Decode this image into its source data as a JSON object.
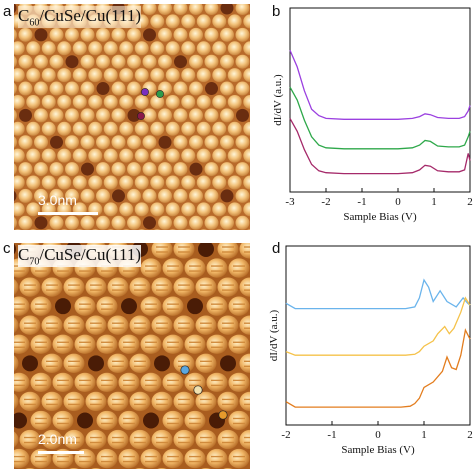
{
  "panels": [
    {
      "letter": "a"
    },
    {
      "letter": "b"
    },
    {
      "letter": "c"
    },
    {
      "letter": "d"
    }
  ],
  "stm_a": {
    "title_prefix": "C",
    "title_sub": "60",
    "title_suffix": "/CuSe/Cu(111)",
    "scale_label": "3.0nm",
    "markers": [
      {
        "color": "#7a2fbf"
      },
      {
        "color": "#2e9b4a"
      },
      {
        "color": "#8a1a4a"
      }
    ]
  },
  "stm_c": {
    "title_prefix": "C",
    "title_sub": "70",
    "title_suffix": "/CuSe/Cu(111)",
    "scale_label": "2.0nm",
    "markers": [
      {
        "color": "#5aa7e0"
      },
      {
        "color": "#f2e2b0"
      },
      {
        "color": "#e69a2c"
      }
    ]
  },
  "chart_data": [
    {
      "type": "line",
      "panel": "b",
      "xlabel": "Sample Bias (V)",
      "ylabel": "dI/dV (a.u.)",
      "xlim": [
        -3,
        2
      ],
      "xticks": [
        -3,
        -2,
        -1,
        0,
        1,
        2
      ],
      "yticks": [],
      "series": [
        {
          "color": "#9b40e0",
          "x": [
            -3.0,
            -2.8,
            -2.6,
            -2.4,
            -2.2,
            -2.0,
            -1.5,
            -1.0,
            -0.5,
            0.0,
            0.4,
            0.6,
            0.75,
            0.9,
            1.1,
            1.4,
            1.7,
            1.85,
            1.95,
            2.0
          ],
          "y": [
            8.2,
            7.3,
            6.0,
            5.0,
            4.65,
            4.5,
            4.45,
            4.45,
            4.45,
            4.45,
            4.5,
            4.6,
            4.75,
            4.7,
            4.55,
            4.5,
            4.5,
            4.6,
            4.9,
            5.2
          ]
        },
        {
          "color": "#2ea84a",
          "x": [
            -3.0,
            -2.8,
            -2.6,
            -2.4,
            -2.2,
            -2.0,
            -1.5,
            -1.0,
            -0.5,
            0.0,
            0.4,
            0.6,
            0.75,
            0.9,
            1.1,
            1.4,
            1.7,
            1.85,
            1.95,
            2.0
          ],
          "y": [
            6.2,
            5.5,
            4.4,
            3.5,
            3.05,
            2.9,
            2.85,
            2.85,
            2.85,
            2.85,
            2.9,
            3.05,
            3.3,
            3.25,
            3.0,
            2.95,
            2.95,
            3.05,
            3.5,
            3.8
          ]
        },
        {
          "color": "#a52a6a",
          "x": [
            -3.0,
            -2.8,
            -2.6,
            -2.4,
            -2.2,
            -2.0,
            -1.5,
            -1.0,
            -0.5,
            0.0,
            0.4,
            0.6,
            0.75,
            0.9,
            1.1,
            1.4,
            1.7,
            1.85,
            1.95,
            2.0
          ],
          "y": [
            4.5,
            3.8,
            2.8,
            2.0,
            1.65,
            1.55,
            1.5,
            1.5,
            1.5,
            1.5,
            1.55,
            1.7,
            1.95,
            1.9,
            1.65,
            1.6,
            1.6,
            1.7,
            2.6,
            2.2
          ]
        }
      ]
    },
    {
      "type": "line",
      "panel": "d",
      "xlabel": "Sample Bias (V)",
      "ylabel": "dI/dV (a.u.)",
      "xlim": [
        -2,
        2
      ],
      "xticks": [
        -2,
        -1,
        0,
        1,
        2
      ],
      "yticks": [],
      "series": [
        {
          "color": "#6ab4ec",
          "x": [
            -2.0,
            -1.8,
            -1.0,
            0.0,
            0.6,
            0.8,
            0.9,
            1.0,
            1.1,
            1.2,
            1.35,
            1.5,
            1.7,
            1.85,
            1.95,
            2.0
          ],
          "y": [
            7.3,
            7.0,
            7.0,
            7.0,
            7.0,
            7.1,
            7.6,
            8.6,
            8.2,
            7.4,
            8.0,
            7.4,
            7.1,
            7.6,
            7.3,
            7.2
          ]
        },
        {
          "color": "#f5c24a",
          "x": [
            -2.0,
            -1.8,
            -1.0,
            0.0,
            0.6,
            0.8,
            0.9,
            1.0,
            1.2,
            1.3,
            1.45,
            1.55,
            1.65,
            1.8,
            1.9,
            2.0
          ],
          "y": [
            4.6,
            4.4,
            4.4,
            4.4,
            4.4,
            4.45,
            4.6,
            4.9,
            5.2,
            5.6,
            6.0,
            5.6,
            5.9,
            6.8,
            7.6,
            7.2
          ]
        },
        {
          "color": "#e37d1e",
          "x": [
            -2.0,
            -1.8,
            -1.0,
            0.0,
            0.5,
            0.7,
            0.8,
            0.9,
            1.0,
            1.2,
            1.4,
            1.5,
            1.6,
            1.7,
            1.8,
            1.9,
            2.0
          ],
          "y": [
            1.8,
            1.5,
            1.5,
            1.5,
            1.5,
            1.55,
            1.7,
            2.0,
            2.6,
            2.9,
            3.5,
            4.3,
            3.7,
            3.6,
            4.4,
            5.8,
            5.3
          ]
        }
      ]
    }
  ]
}
